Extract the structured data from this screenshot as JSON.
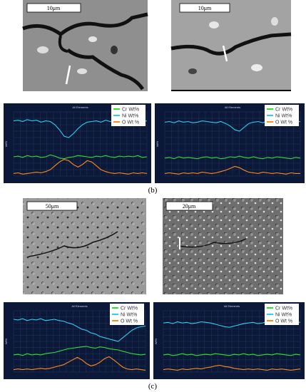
{
  "figure": {
    "panel_labels": [
      "(b)",
      "(c)"
    ],
    "images": [
      {
        "scale_bar": "10μm"
      },
      {
        "scale_bar": "10μm"
      },
      {
        "scale_bar": "50μm"
      },
      {
        "scale_bar": "20μm"
      }
    ]
  },
  "chart_data": [
    {
      "type": "line",
      "title": "All Elements",
      "ylabel": "Wt%",
      "ylim": [
        0,
        100
      ],
      "grid": true,
      "series": [
        {
          "name": "Cr Wt%",
          "color": "#33dd33",
          "values": [
            30,
            31,
            29,
            32,
            30,
            31,
            29,
            30,
            33,
            31,
            28,
            27,
            29,
            30,
            32,
            31,
            30,
            29,
            31,
            30,
            32,
            30,
            29,
            31,
            30,
            31,
            30,
            32,
            29,
            30
          ]
        },
        {
          "name": "Ni Wt%",
          "color": "#33ccee",
          "values": [
            86,
            87,
            85,
            88,
            86,
            87,
            84,
            86,
            85,
            80,
            72,
            62,
            60,
            66,
            74,
            80,
            84,
            85,
            86,
            84,
            87,
            85,
            86,
            88,
            85,
            86,
            84,
            87,
            85,
            86
          ]
        },
        {
          "name": "O Wt %",
          "color": "#ff8c1a",
          "values": [
            4,
            5,
            3,
            4,
            5,
            6,
            5,
            7,
            10,
            16,
            22,
            26,
            24,
            18,
            14,
            18,
            24,
            22,
            16,
            10,
            7,
            5,
            4,
            5,
            4,
            3,
            5,
            4,
            5,
            4
          ]
        }
      ]
    },
    {
      "type": "line",
      "title": "All Elements",
      "ylabel": "Wt%",
      "ylim": [
        0,
        100
      ],
      "grid": true,
      "series": [
        {
          "name": "Cr Wt%",
          "color": "#33dd33",
          "values": [
            28,
            29,
            27,
            30,
            28,
            29,
            28,
            27,
            29,
            30,
            28,
            29,
            27,
            28,
            30,
            29,
            31,
            29,
            28,
            30,
            28,
            27,
            29,
            28,
            30,
            29,
            28,
            27,
            29,
            28
          ]
        },
        {
          "name": "Ni Wt%",
          "color": "#33ccee",
          "values": [
            84,
            85,
            83,
            86,
            84,
            85,
            83,
            84,
            86,
            85,
            84,
            83,
            85,
            82,
            78,
            72,
            70,
            76,
            82,
            84,
            85,
            83,
            86,
            84,
            85,
            84,
            83,
            85,
            84,
            85
          ]
        },
        {
          "name": "O Wt %",
          "color": "#ff8c1a",
          "values": [
            4,
            5,
            4,
            3,
            5,
            4,
            5,
            4,
            6,
            5,
            4,
            5,
            7,
            9,
            12,
            15,
            13,
            9,
            6,
            5,
            4,
            6,
            5,
            4,
            5,
            4,
            3,
            5,
            4,
            4
          ]
        }
      ]
    },
    {
      "type": "line",
      "title": "All Elements",
      "ylabel": "Wt%",
      "ylim": [
        0,
        100
      ],
      "grid": true,
      "series": [
        {
          "name": "Cr Wt%",
          "color": "#33dd33",
          "values": [
            28,
            29,
            27,
            30,
            28,
            29,
            28,
            30,
            31,
            32,
            34,
            36,
            38,
            39,
            40,
            41,
            42,
            40,
            39,
            41,
            40,
            38,
            37,
            36,
            34,
            32,
            30,
            29,
            28,
            29
          ]
        },
        {
          "name": "Ni Wt%",
          "color": "#33ccee",
          "values": [
            86,
            85,
            87,
            84,
            86,
            85,
            87,
            84,
            85,
            86,
            84,
            83,
            80,
            78,
            74,
            70,
            68,
            64,
            62,
            58,
            56,
            54,
            52,
            50,
            56,
            62,
            68,
            72,
            74,
            75
          ]
        },
        {
          "name": "O Wt %",
          "color": "#ff8c1a",
          "values": [
            4,
            5,
            4,
            5,
            4,
            5,
            6,
            5,
            6,
            8,
            10,
            12,
            16,
            20,
            24,
            20,
            14,
            10,
            12,
            16,
            22,
            25,
            20,
            14,
            8,
            5,
            4,
            5,
            4,
            3
          ]
        }
      ]
    },
    {
      "type": "line",
      "title": "All Elements",
      "ylabel": "Wt%",
      "ylim": [
        0,
        100
      ],
      "grid": true,
      "series": [
        {
          "name": "Cr Wt%",
          "color": "#33dd33",
          "values": [
            28,
            29,
            27,
            28,
            30,
            28,
            29,
            27,
            28,
            29,
            28,
            30,
            29,
            28,
            27,
            29,
            28,
            30,
            28,
            29,
            27,
            28,
            29,
            28,
            30,
            29,
            28,
            27,
            29,
            28
          ]
        },
        {
          "name": "Ni Wt%",
          "color": "#33ccee",
          "values": [
            80,
            81,
            79,
            82,
            80,
            81,
            79,
            80,
            82,
            81,
            80,
            78,
            76,
            74,
            73,
            75,
            77,
            79,
            80,
            81,
            79,
            80,
            82,
            81,
            80,
            79,
            81,
            80,
            82,
            81
          ]
        },
        {
          "name": "O Wt %",
          "color": "#ff8c1a",
          "values": [
            4,
            5,
            4,
            3,
            5,
            4,
            5,
            6,
            5,
            7,
            8,
            10,
            11,
            9,
            8,
            6,
            5,
            4,
            5,
            4,
            5,
            4,
            3,
            5,
            4,
            5,
            4,
            3,
            4,
            5
          ]
        }
      ]
    }
  ]
}
